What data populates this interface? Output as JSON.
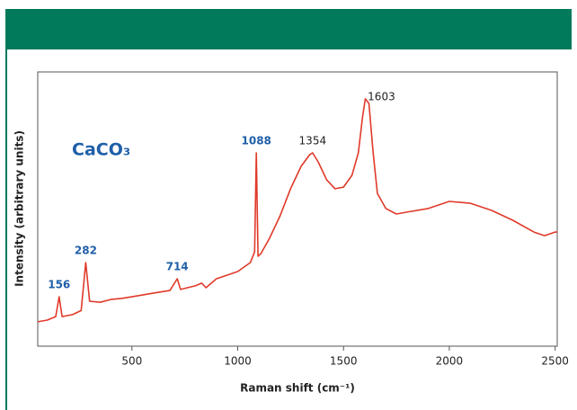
{
  "chart_data": {
    "type": "line",
    "title": "CaCO₃",
    "x_label": "Raman shift (cm⁻¹)",
    "y_label": "Intensity (arbitrary units)",
    "x": [
      55,
      100,
      140,
      156,
      170,
      220,
      260,
      282,
      300,
      350,
      400,
      450,
      500,
      600,
      680,
      714,
      730,
      800,
      830,
      850,
      900,
      1000,
      1060,
      1080,
      1088,
      1096,
      1110,
      1150,
      1200,
      1250,
      1300,
      1340,
      1354,
      1380,
      1420,
      1460,
      1500,
      1540,
      1570,
      1590,
      1603,
      1620,
      1640,
      1660,
      1700,
      1750,
      1800,
      1900,
      2000,
      2100,
      2200,
      2300,
      2400,
      2450,
      2500,
      2510
    ],
    "series": [
      {
        "color": "#e03a2a",
        "values": [
          8.9,
          9.5,
          10.8,
          18,
          10.8,
          11.5,
          13,
          30.5,
          16.4,
          16,
          17,
          17.4,
          18,
          19.3,
          20.3,
          24.6,
          20.7,
          22,
          23,
          21.3,
          24.6,
          27.2,
          30.5,
          34.4,
          70.5,
          32.8,
          33.8,
          39.3,
          47.5,
          57.4,
          65.6,
          69.8,
          70.5,
          67.2,
          60.7,
          57.4,
          58,
          62.3,
          70.5,
          83.6,
          90.2,
          88.5,
          70.5,
          55.7,
          50.2,
          48.2,
          48.9,
          50.2,
          52.8,
          52.1,
          49.5,
          45.9,
          41.6,
          40.3,
          41.6,
          41.6
        ]
      }
    ],
    "peak_labels": [
      156,
      282,
      714,
      1088,
      1354,
      1603
    ],
    "peak_label_colors": [
      "#1f5fa8",
      "#1f5fa8",
      "#1f5fa8",
      "#1f5fa8",
      "#222222",
      "#222222"
    ],
    "xlim": [
      55,
      2510
    ],
    "ylim": [
      0,
      100
    ],
    "xticks": [
      500,
      1000,
      1500,
      2000,
      2500
    ]
  }
}
